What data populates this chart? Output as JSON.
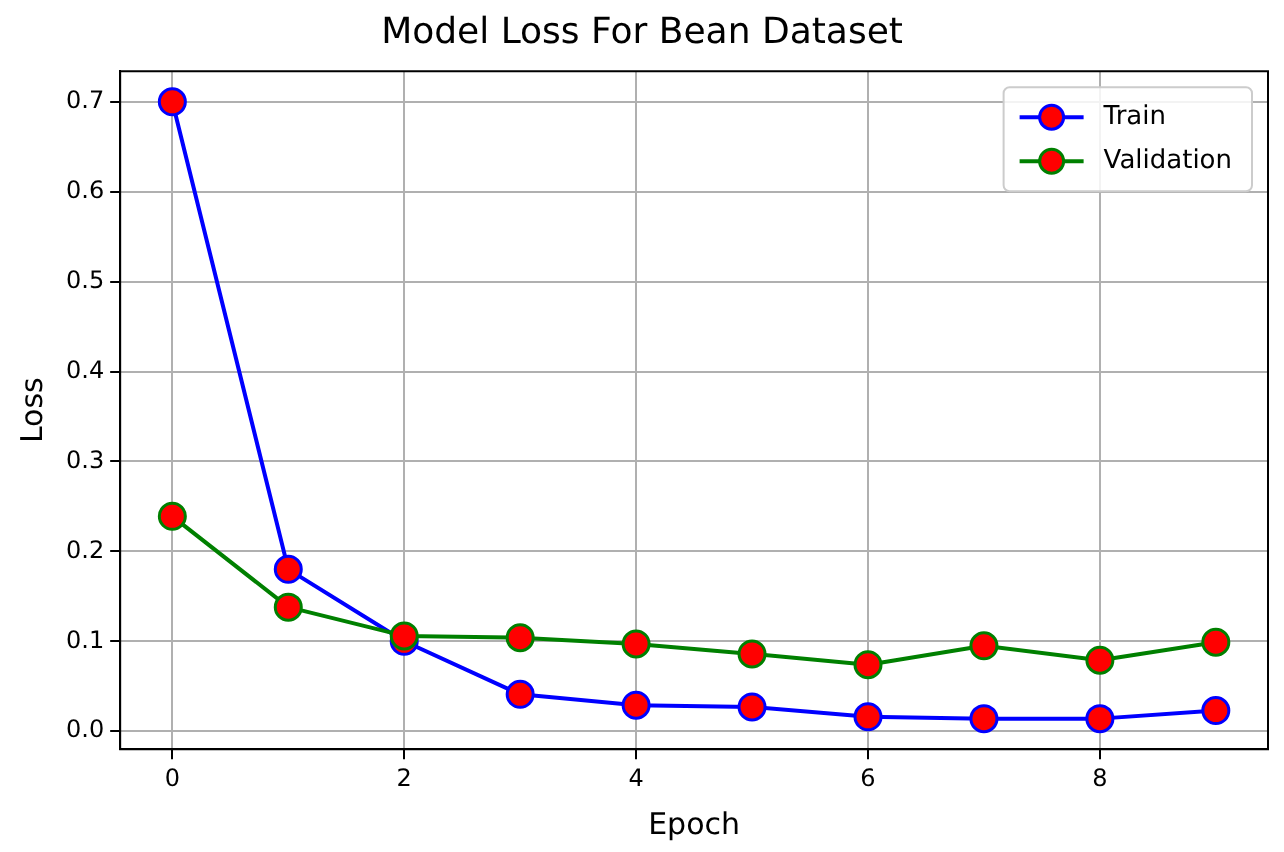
{
  "chart_data": {
    "type": "line",
    "title": "Model Loss For Bean Dataset",
    "xlabel": "Epoch",
    "ylabel": "Loss",
    "x": [
      0,
      1,
      2,
      3,
      4,
      5,
      6,
      7,
      8,
      9
    ],
    "series": [
      {
        "name": "Train",
        "color": "#0000ff",
        "values": [
          0.7,
          0.18,
          0.1,
          0.041,
          0.029,
          0.027,
          0.016,
          0.014,
          0.014,
          0.023
        ]
      },
      {
        "name": "Validation",
        "color": "#008000",
        "values": [
          0.239,
          0.138,
          0.106,
          0.104,
          0.097,
          0.086,
          0.074,
          0.095,
          0.079,
          0.099
        ]
      }
    ],
    "xlim": [
      -0.45,
      9.45
    ],
    "xticks": [
      0,
      2,
      4,
      6,
      8
    ],
    "ylim": [
      -0.02,
      0.734
    ],
    "yticks": [
      {
        "value": 0,
        "label": "0.0"
      },
      0.1,
      0.2,
      0.3,
      0.4,
      0.5,
      0.6,
      0.7
    ],
    "grid": true,
    "legend": "top right",
    "marker": "circle",
    "line_style": "solid"
  }
}
